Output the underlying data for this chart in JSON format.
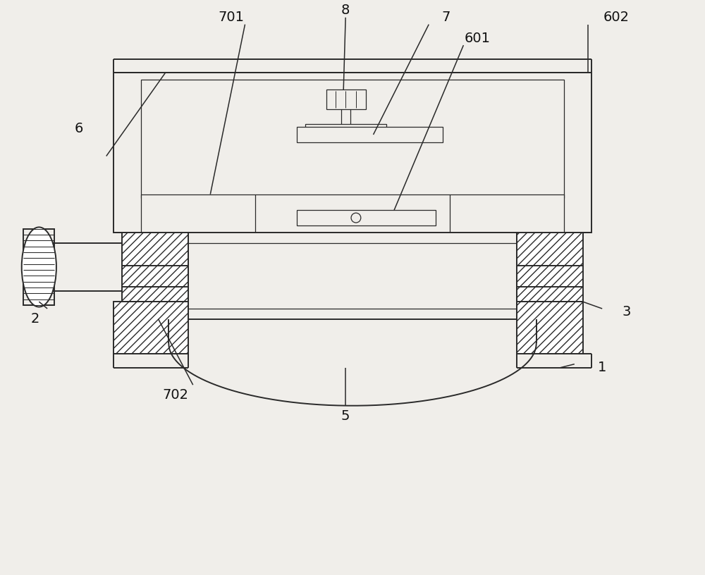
{
  "bg_color": "#f0eeea",
  "line_color": "#2a2a2a",
  "lw": 1.4,
  "lw_thin": 0.9,
  "figsize": [
    10.0,
    8.16
  ],
  "labels": [
    "1",
    "2",
    "3",
    "5",
    "6",
    "7",
    "8",
    "601",
    "602",
    "701",
    "702"
  ]
}
